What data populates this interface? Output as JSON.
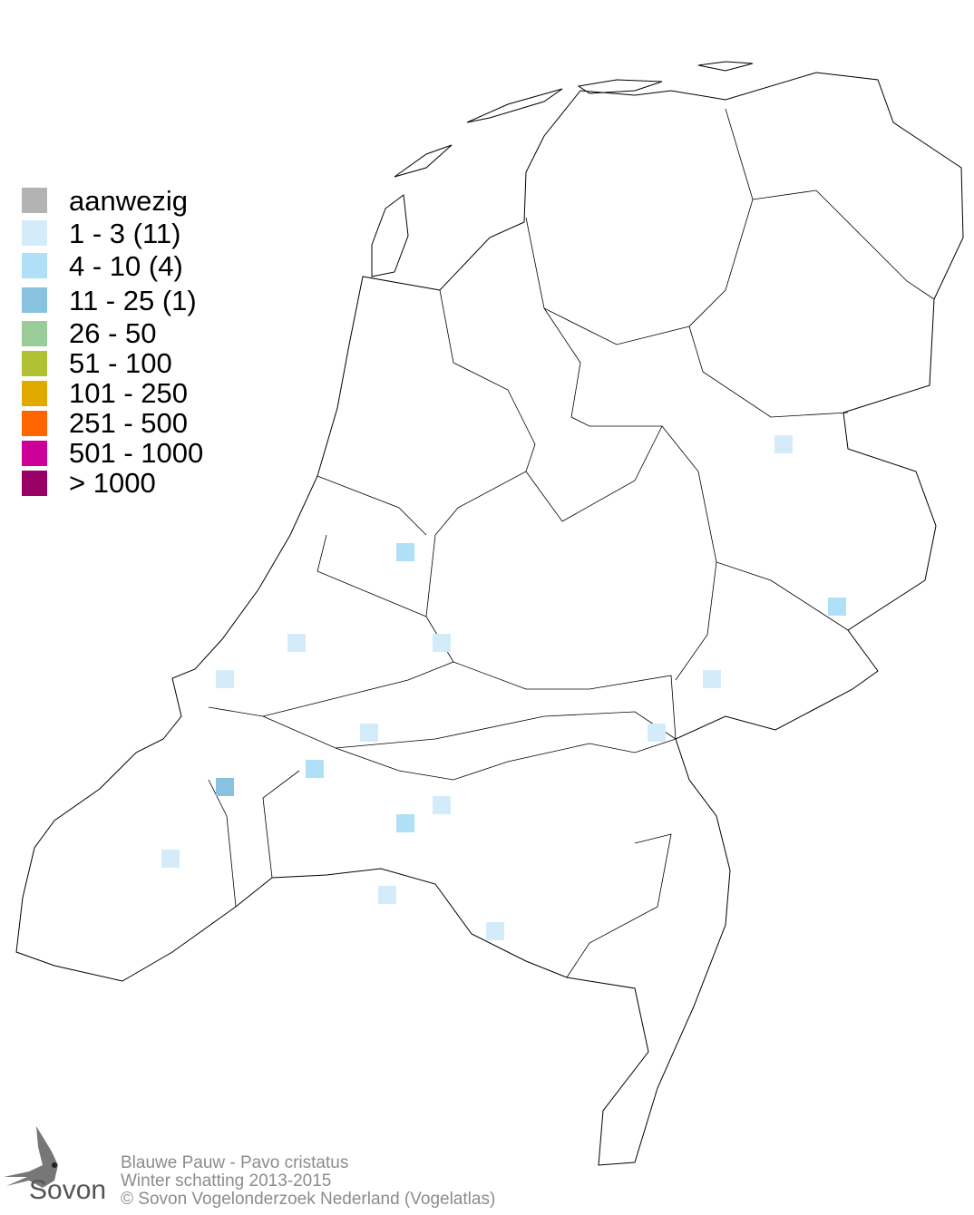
{
  "legend": {
    "items": [
      {
        "label": "aanwezig",
        "color": "#b3b3b3"
      },
      {
        "label": "1 - 3 (11)",
        "color": "#d4ecfa"
      },
      {
        "label": "4 - 10 (4)",
        "color": "#b0e0f8"
      },
      {
        "label": "11 - 25 (1)",
        "color": "#88c2df"
      },
      {
        "label": "26 - 50",
        "color": "#99cc99"
      },
      {
        "label": "51 - 100",
        "color": "#b0c133"
      },
      {
        "label": "101 - 250",
        "color": "#e0aa00"
      },
      {
        "label": "251 - 500",
        "color": "#ff6600"
      },
      {
        "label": "501 - 1000",
        "color": "#cc0099"
      },
      {
        "label": "> 1000",
        "color": "#990066"
      }
    ]
  },
  "map": {
    "region": "Nederland",
    "cells": [
      {
        "class": 1
      },
      {
        "class": 2
      },
      {
        "class": 2
      },
      {
        "class": 1
      },
      {
        "class": 1
      },
      {
        "class": 1
      },
      {
        "class": 1
      },
      {
        "class": 1
      },
      {
        "class": 1
      },
      {
        "class": 2
      },
      {
        "class": 3
      },
      {
        "class": 1
      },
      {
        "class": 2
      },
      {
        "class": 1
      },
      {
        "class": 1
      },
      {
        "class": 1
      }
    ]
  },
  "credits": {
    "species": "Blauwe Pauw - Pavo cristatus",
    "period": "Winter schatting 2013-2015",
    "copyright": "© Sovon Vogelonderzoek Nederland (Vogelatlas)"
  },
  "logo": {
    "text": "Sovon"
  }
}
